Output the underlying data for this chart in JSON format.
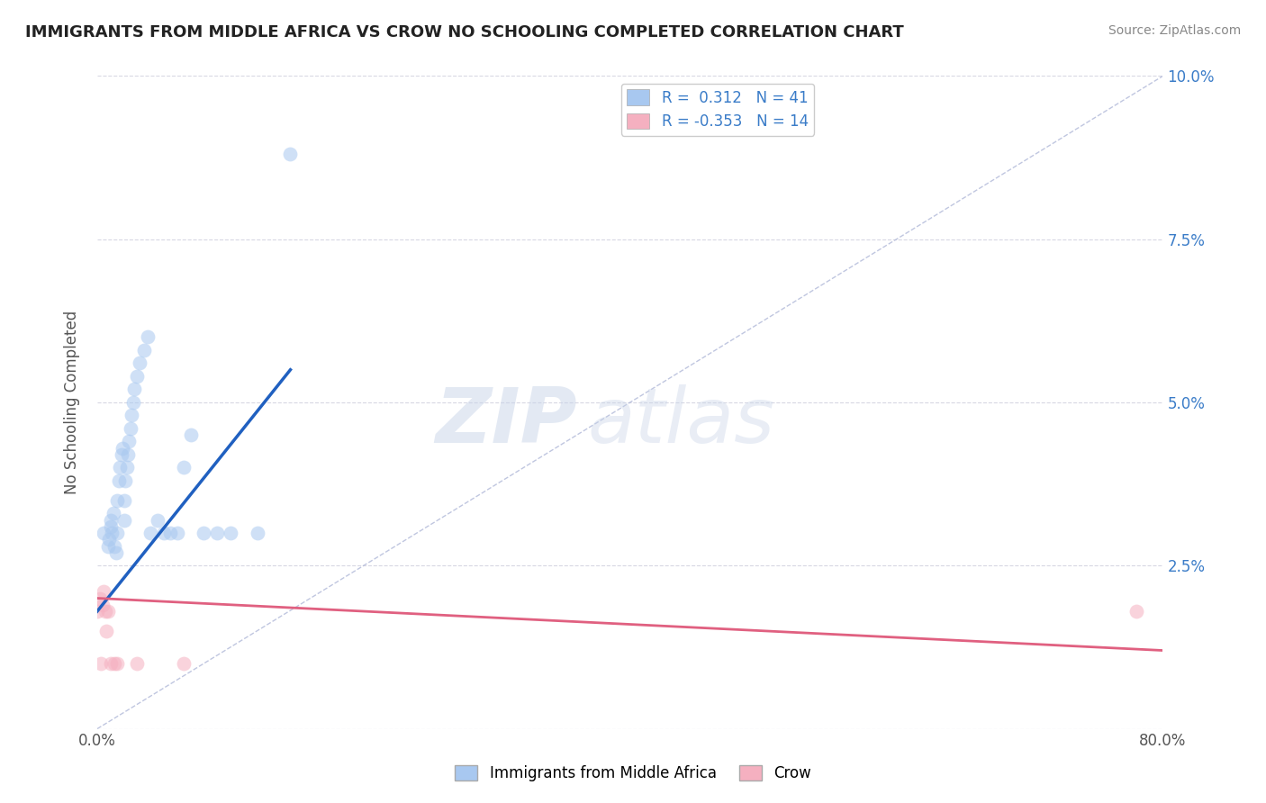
{
  "title": "IMMIGRANTS FROM MIDDLE AFRICA VS CROW NO SCHOOLING COMPLETED CORRELATION CHART",
  "source": "Source: ZipAtlas.com",
  "ylabel": "No Schooling Completed",
  "xlim": [
    0,
    0.8
  ],
  "ylim": [
    0,
    0.1
  ],
  "xticks": [
    0.0,
    0.1,
    0.2,
    0.3,
    0.4,
    0.5,
    0.6,
    0.7,
    0.8
  ],
  "xticklabels": [
    "0.0%",
    "",
    "",
    "",
    "",
    "",
    "",
    "",
    "80.0%"
  ],
  "yticks": [
    0.0,
    0.025,
    0.05,
    0.075,
    0.1
  ],
  "yticklabels": [
    "",
    "2.5%",
    "5.0%",
    "7.5%",
    "10.0%"
  ],
  "legend1_r": "0.312",
  "legend1_n": "41",
  "legend2_r": "-0.353",
  "legend2_n": "14",
  "blue_color": "#A8C8F0",
  "pink_color": "#F5B0C0",
  "blue_line_color": "#2060C0",
  "pink_line_color": "#E06080",
  "dashed_line_color": "#B0B8D8",
  "watermark_zip": "ZIP",
  "watermark_atlas": "atlas",
  "blue_scatter_x": [
    0.005,
    0.008,
    0.009,
    0.01,
    0.01,
    0.011,
    0.012,
    0.013,
    0.014,
    0.015,
    0.015,
    0.016,
    0.017,
    0.018,
    0.019,
    0.02,
    0.02,
    0.021,
    0.022,
    0.023,
    0.024,
    0.025,
    0.026,
    0.027,
    0.028,
    0.03,
    0.032,
    0.035,
    0.038,
    0.04,
    0.045,
    0.05,
    0.055,
    0.06,
    0.065,
    0.07,
    0.08,
    0.09,
    0.1,
    0.12,
    0.145
  ],
  "blue_scatter_y": [
    0.03,
    0.028,
    0.029,
    0.031,
    0.032,
    0.03,
    0.033,
    0.028,
    0.027,
    0.03,
    0.035,
    0.038,
    0.04,
    0.042,
    0.043,
    0.032,
    0.035,
    0.038,
    0.04,
    0.042,
    0.044,
    0.046,
    0.048,
    0.05,
    0.052,
    0.054,
    0.056,
    0.058,
    0.06,
    0.03,
    0.032,
    0.03,
    0.03,
    0.03,
    0.04,
    0.045,
    0.03,
    0.03,
    0.03,
    0.03,
    0.088
  ],
  "pink_scatter_x": [
    0.0,
    0.002,
    0.003,
    0.004,
    0.005,
    0.006,
    0.007,
    0.008,
    0.01,
    0.013,
    0.015,
    0.03,
    0.065,
    0.78
  ],
  "pink_scatter_y": [
    0.018,
    0.02,
    0.01,
    0.019,
    0.021,
    0.018,
    0.015,
    0.018,
    0.01,
    0.01,
    0.01,
    0.01,
    0.01,
    0.018
  ],
  "blue_line_x": [
    0.0,
    0.145
  ],
  "blue_line_y": [
    0.018,
    0.055
  ],
  "pink_line_x": [
    0.0,
    0.8
  ],
  "pink_line_y": [
    0.02,
    0.012
  ],
  "dashed_line_x": [
    0.0,
    0.8
  ],
  "dashed_line_y": [
    0.0,
    0.1
  ]
}
